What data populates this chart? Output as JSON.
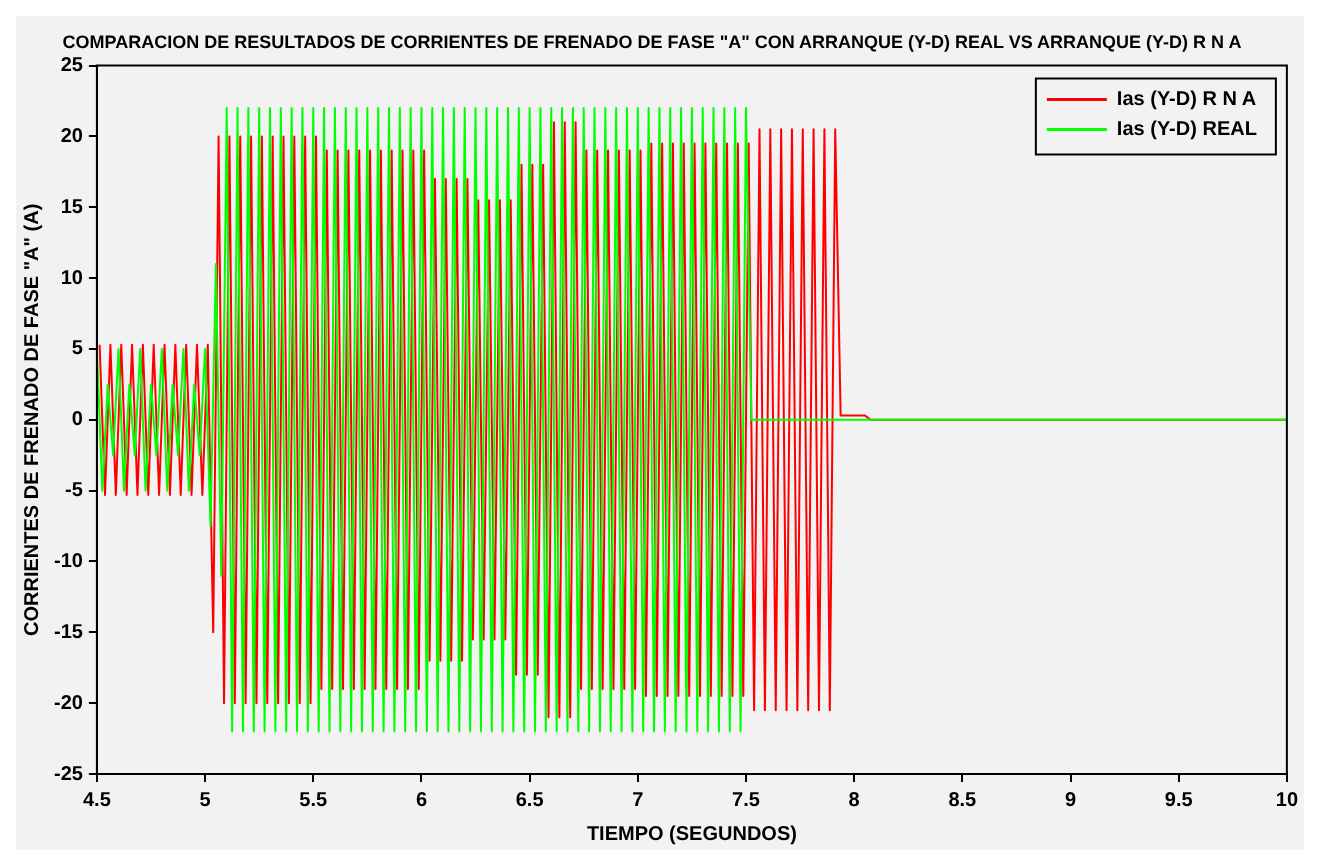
{
  "chart_data": {
    "type": "line",
    "title": "COMPARACION DE RESULTADOS DE CORRIENTES DE FRENADO DE FASE \"A\" CON ARRANQUE (Y-D) REAL VS ARRANQUE (Y-D) R N A",
    "xlabel": "TIEMPO (SEGUNDOS)",
    "ylabel": "CORRIENTES DE FRENADO DE FASE \"A\" (A)",
    "xlim": [
      4.5,
      10
    ],
    "xticks": [
      4.5,
      5,
      5.5,
      6,
      6.5,
      7,
      7.5,
      8,
      8.5,
      9,
      9.5,
      10
    ],
    "ylim": [
      -25,
      25
    ],
    "yticks": [
      -25,
      -20,
      -15,
      -10,
      -5,
      0,
      5,
      10,
      15,
      20,
      25
    ],
    "grid": false,
    "legend": "top right",
    "marker": "none",
    "line_style": "solid",
    "series": [
      {
        "name": "Ias (Y-D) R N A",
        "color": "#ff0000",
        "x": [
          4.5125,
          4.5375,
          4.5625,
          4.5875,
          4.6125,
          4.6375,
          4.6625,
          4.6875,
          4.7125,
          4.7375,
          4.7625,
          4.7875,
          4.8125,
          4.8375,
          4.8625,
          4.8875,
          4.9125,
          4.9375,
          4.9625,
          4.9875,
          5.0125,
          5.0375,
          5.0625,
          5.0875,
          5.1125,
          5.1375,
          5.1625,
          5.1875,
          5.2125,
          5.2375,
          5.2625,
          5.2875,
          5.3125,
          5.3375,
          5.3625,
          5.3875,
          5.4125,
          5.4375,
          5.4625,
          5.4875,
          5.5125,
          5.5375,
          5.5625,
          5.5875,
          5.6125,
          5.6375,
          5.6625,
          5.6875,
          5.7125,
          5.7375,
          5.7625,
          5.7875,
          5.8125,
          5.8375,
          5.8625,
          5.8875,
          5.9125,
          5.9375,
          5.9625,
          5.9875,
          6.0125,
          6.0375,
          6.0625,
          6.0875,
          6.1125,
          6.1375,
          6.1625,
          6.1875,
          6.2125,
          6.2375,
          6.2625,
          6.2875,
          6.3125,
          6.3375,
          6.3625,
          6.3875,
          6.4125,
          6.4375,
          6.4625,
          6.4875,
          6.5125,
          6.5375,
          6.5625,
          6.5875,
          6.6125,
          6.6375,
          6.6625,
          6.6875,
          6.7125,
          6.7375,
          6.7625,
          6.7875,
          6.8125,
          6.8375,
          6.8625,
          6.8875,
          6.9125,
          6.9375,
          6.9625,
          6.9875,
          7.0125,
          7.0375,
          7.0625,
          7.0875,
          7.1125,
          7.1375,
          7.1625,
          7.1875,
          7.2125,
          7.2375,
          7.2625,
          7.2875,
          7.3125,
          7.3375,
          7.3625,
          7.3875,
          7.4125,
          7.4375,
          7.4625,
          7.4875,
          7.5125,
          7.5375,
          7.5625,
          7.5875,
          7.6125,
          7.6375,
          7.6625,
          7.6875,
          7.7125,
          7.7375,
          7.7625,
          7.7875,
          7.8125,
          7.8375,
          7.8625,
          7.8875,
          7.9125,
          7.9375,
          8.05,
          8.075,
          10
        ],
        "values": [
          5.3,
          -5.3,
          5.3,
          -5.3,
          5.3,
          -5.3,
          5.3,
          -5.3,
          5.3,
          -5.3,
          5.3,
          -5.3,
          5.3,
          -5.3,
          5.3,
          -5.3,
          5.3,
          -5.3,
          5.3,
          -5.3,
          5.3,
          -15,
          20,
          -20,
          20,
          -20,
          20,
          -20,
          20,
          -20,
          20,
          -20,
          20,
          -20,
          20,
          -20,
          20,
          -20,
          20,
          -20,
          20,
          -19,
          19,
          -19,
          19,
          -19,
          19,
          -19,
          19,
          -19,
          19,
          -19,
          19,
          -19,
          19,
          -19,
          19,
          -19,
          19,
          -19,
          19,
          -17,
          17,
          -17,
          17,
          -17,
          17,
          -17,
          17,
          -15.5,
          15.5,
          -15.5,
          15.5,
          -15.5,
          15.5,
          -15.5,
          15.5,
          -18,
          18,
          -18,
          18,
          -18,
          18,
          -21,
          21,
          -21,
          21,
          -21,
          21,
          -19,
          19,
          -19,
          19,
          -19,
          19,
          -19,
          19,
          -19,
          19,
          -19,
          19,
          -19.5,
          19.5,
          -19.5,
          19.5,
          -19.5,
          19.5,
          -19.5,
          19.5,
          -19.5,
          19.5,
          -19.5,
          19.5,
          -19.5,
          19.5,
          -19.5,
          19.5,
          -19.5,
          19.5,
          -19.5,
          19.5,
          -20.5,
          20.5,
          -20.5,
          20.5,
          -20.5,
          20.5,
          -20.5,
          20.5,
          -20.5,
          20.5,
          -20.5,
          20.5,
          -20.5,
          20.5,
          -20.5,
          20.5,
          0.3,
          0.3,
          0,
          0
        ]
      },
      {
        "name": "Ias (Y-D) REAL",
        "color": "#00ff00",
        "x": [
          4.5,
          4.525,
          4.55,
          4.575,
          4.6,
          4.625,
          4.65,
          4.675,
          4.7,
          4.725,
          4.75,
          4.775,
          4.8,
          4.825,
          4.85,
          4.875,
          4.9,
          4.925,
          4.95,
          4.975,
          5,
          5.025,
          5.05,
          5.075,
          5.1,
          5.125,
          5.15,
          5.175,
          5.2,
          5.225,
          5.25,
          5.275,
          5.3,
          5.325,
          5.35,
          5.375,
          5.4,
          5.425,
          5.45,
          5.475,
          5.5,
          5.525,
          5.55,
          5.575,
          5.6,
          5.625,
          5.65,
          5.675,
          5.7,
          5.725,
          5.75,
          5.775,
          5.8,
          5.825,
          5.85,
          5.875,
          5.9,
          5.925,
          5.95,
          5.975,
          6,
          6.025,
          6.05,
          6.075,
          6.1,
          6.125,
          6.15,
          6.175,
          6.2,
          6.225,
          6.25,
          6.275,
          6.3,
          6.325,
          6.35,
          6.375,
          6.4,
          6.425,
          6.45,
          6.475,
          6.5,
          6.525,
          6.55,
          6.575,
          6.6,
          6.625,
          6.65,
          6.675,
          6.7,
          6.725,
          6.75,
          6.775,
          6.8,
          6.825,
          6.85,
          6.875,
          6.9,
          6.925,
          6.95,
          6.975,
          7,
          7.025,
          7.05,
          7.075,
          7.1,
          7.125,
          7.15,
          7.175,
          7.2,
          7.225,
          7.25,
          7.275,
          7.3,
          7.325,
          7.35,
          7.375,
          7.4,
          7.425,
          7.45,
          7.475,
          7.5,
          7.525,
          10
        ],
        "values": [
          5,
          -5,
          2.5,
          -2.5,
          5,
          -5,
          2.5,
          -2.5,
          5,
          -5,
          2.5,
          -2.5,
          5,
          -5,
          2.5,
          -2.5,
          5,
          -5,
          2.5,
          -2.5,
          5,
          -7.5,
          11,
          -11,
          22,
          -22,
          22,
          -22,
          22,
          -22,
          22,
          -22,
          22,
          -22,
          22,
          -22,
          22,
          -22,
          22,
          -22,
          22,
          -22,
          22,
          -22,
          22,
          -22,
          22,
          -22,
          22,
          -22,
          22,
          -22,
          22,
          -22,
          22,
          -22,
          22,
          -22,
          22,
          -22,
          22,
          -22,
          22,
          -22,
          22,
          -22,
          22,
          -22,
          22,
          -22,
          22,
          -22,
          22,
          -22,
          22,
          -22,
          22,
          -22,
          22,
          -22,
          22,
          -22,
          22,
          -22,
          22,
          -22,
          22,
          -22,
          22,
          -22,
          22,
          -22,
          22,
          -22,
          22,
          -22,
          22,
          -22,
          22,
          -22,
          22,
          -22,
          22,
          -22,
          22,
          -22,
          22,
          -22,
          22,
          -22,
          22,
          -22,
          22,
          -22,
          22,
          -22,
          22,
          -22,
          22,
          -22,
          22,
          0,
          0
        ]
      }
    ]
  }
}
